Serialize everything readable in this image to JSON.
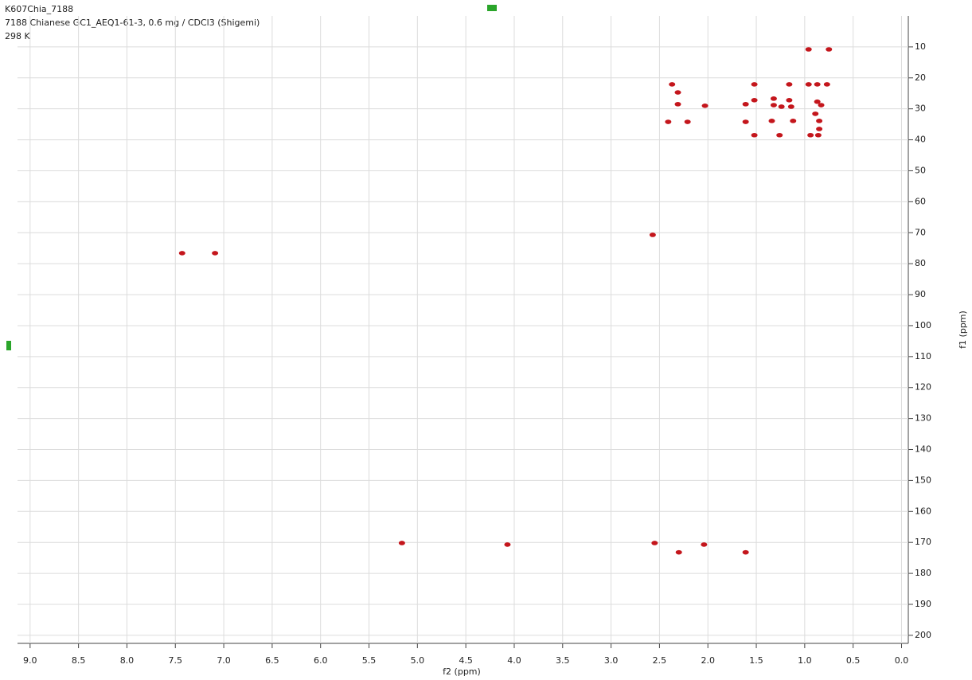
{
  "chart_data": {
    "type": "scatter",
    "title_lines": [
      "K607Chia_7188",
      "7188 Chianese GC1_AEQ1-61-3, 0.6 mg / CDCl3 (Shigemi)",
      "298 K"
    ],
    "x_label": "f2 (ppm)",
    "y_label": "f1 (ppm)",
    "xlim": [
      9.13,
      -0.07
    ],
    "ylim": [
      0,
      202.6
    ],
    "xticks": [
      {
        "value": 9,
        "label": "9.0"
      },
      8.5,
      {
        "value": 8,
        "label": "8.0"
      },
      7.5,
      {
        "value": 7,
        "label": "7.0"
      },
      6.5,
      {
        "value": 6,
        "label": "6.0"
      },
      5.5,
      {
        "value": 5,
        "label": "5.0"
      },
      4.5,
      {
        "value": 4,
        "label": "4.0"
      },
      3.5,
      {
        "value": 3,
        "label": "3.0"
      },
      2.5,
      {
        "value": 2,
        "label": "2.0"
      },
      1.5,
      {
        "value": 1,
        "label": "1.0"
      },
      0.5,
      {
        "value": 0,
        "label": "0.0"
      }
    ],
    "yticks": [
      10,
      20,
      30,
      40,
      50,
      60,
      70,
      80,
      90,
      100,
      110,
      120,
      130,
      140,
      150,
      160,
      170,
      180,
      190,
      200
    ],
    "grid": true,
    "series": [
      {
        "color": "#c4161c",
        "x": [
          7.43,
          7.09,
          2.57,
          5.16,
          4.07,
          2.55,
          2.3,
          2.04,
          1.61,
          0.96,
          0.75,
          2.37,
          1.52,
          1.16,
          0.96,
          0.87,
          0.77,
          2.31,
          1.52,
          1.32,
          1.16,
          2.31,
          2.03,
          1.61,
          1.32,
          1.24,
          0.87,
          0.83,
          1.14,
          0.89,
          2.41,
          2.21,
          1.61,
          1.34,
          1.12,
          0.85,
          0.85,
          1.52,
          1.26,
          0.86,
          0.94
        ],
        "values": [
          76.6,
          76.6,
          70.7,
          170.2,
          170.7,
          170.2,
          173.2,
          170.7,
          173.2,
          10.8,
          10.8,
          22.1,
          22.1,
          22.1,
          22.1,
          22.1,
          22.1,
          24.7,
          27.2,
          26.7,
          27.2,
          28.5,
          29.0,
          28.5,
          28.8,
          29.3,
          27.7,
          28.8,
          29.3,
          31.6,
          34.2,
          34.2,
          34.2,
          33.9,
          33.9,
          33.9,
          36.5,
          38.5,
          38.5,
          38.5,
          38.5
        ]
      }
    ]
  }
}
